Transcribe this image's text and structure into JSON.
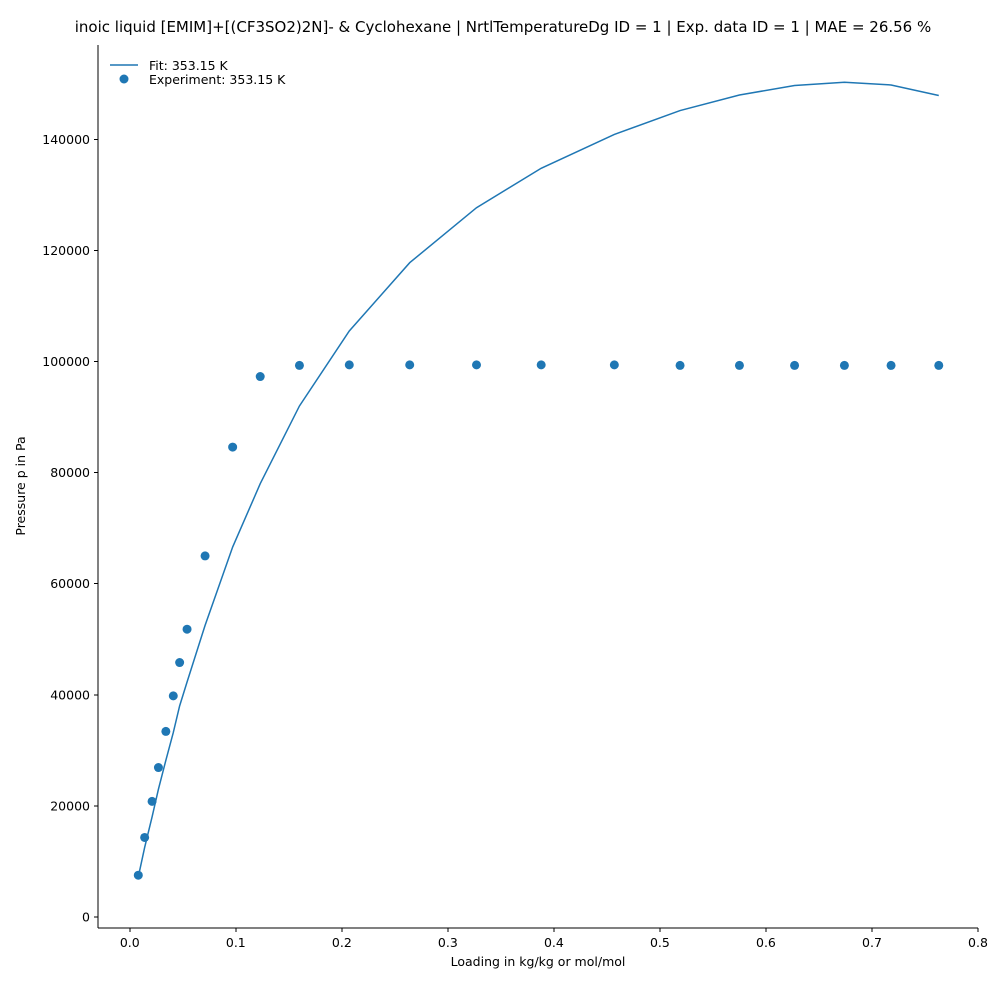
{
  "chart_data": {
    "type": "scatter",
    "title": "inoic liquid [EMIM]+[(CF3SO2)2N]- & Cyclohexane | NrtlTemperatureDg ID = 1 | Exp. data ID = 1 | MAE = 26.56 %",
    "xlabel": "Loading in kg/kg or mol/mol",
    "ylabel": "Pressure p in Pa",
    "xlim": [
      -0.03,
      0.8
    ],
    "ylim": [
      -2000,
      157000
    ],
    "xticks": [
      0.0,
      0.1,
      0.2,
      0.3,
      0.4,
      0.5,
      0.6,
      0.7,
      0.8
    ],
    "xtick_labels": [
      "0.0",
      "0.1",
      "0.2",
      "0.3",
      "0.4",
      "0.5",
      "0.6",
      "0.7",
      "0.8"
    ],
    "yticks": [
      0,
      20000,
      40000,
      60000,
      80000,
      100000,
      120000,
      140000
    ],
    "ytick_labels": [
      "0",
      "20000",
      "40000",
      "60000",
      "80000",
      "100000",
      "120000",
      "140000"
    ],
    "grid": false,
    "legend_position": "top-left",
    "color": "#1f77b4",
    "series": [
      {
        "name": "Fit: 353.15 K",
        "kind": "line",
        "x": [
          0.008,
          0.014,
          0.021,
          0.027,
          0.034,
          0.041,
          0.047,
          0.054,
          0.071,
          0.097,
          0.123,
          0.16,
          0.207,
          0.264,
          0.327,
          0.388,
          0.457,
          0.519,
          0.575,
          0.627,
          0.674,
          0.718,
          0.763
        ],
        "y": [
          7200,
          12500,
          18000,
          23000,
          28200,
          33200,
          38000,
          42300,
          52500,
          66600,
          78000,
          92000,
          105500,
          117800,
          127700,
          134800,
          140900,
          145200,
          148000,
          149700,
          150300,
          149800,
          147900
        ]
      },
      {
        "name": "Experiment: 353.15 K",
        "kind": "scatter",
        "x": [
          0.008,
          0.014,
          0.021,
          0.027,
          0.034,
          0.041,
          0.047,
          0.054,
          0.071,
          0.097,
          0.123,
          0.16,
          0.207,
          0.264,
          0.327,
          0.388,
          0.457,
          0.519,
          0.575,
          0.627,
          0.674,
          0.718,
          0.763
        ],
        "y": [
          7500,
          14300,
          20800,
          26900,
          33400,
          39800,
          45800,
          51800,
          65000,
          84600,
          97300,
          99300,
          99400,
          99400,
          99400,
          99400,
          99400,
          99300,
          99300,
          99300,
          99300,
          99300,
          99300
        ]
      }
    ]
  }
}
